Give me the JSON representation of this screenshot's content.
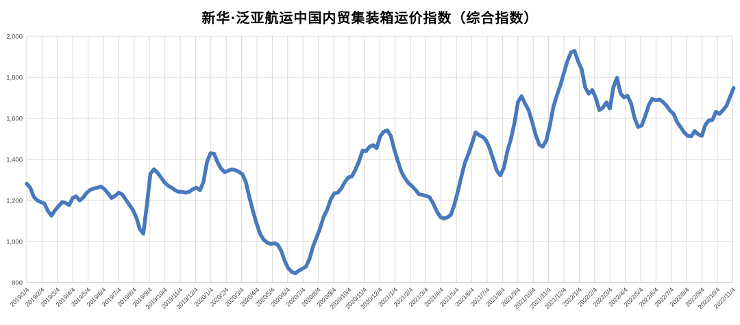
{
  "chart_data": {
    "type": "line",
    "title": "新华·泛亚航运中国内贸集装箱运价指数（综合指数）",
    "legend": "none",
    "grid": true,
    "ylim": [
      800,
      2000
    ],
    "y_tick_step": 200,
    "y_tick_labels": [
      "800",
      "1,000",
      "1,200",
      "1,400",
      "1,600",
      "1,800",
      "2,000"
    ],
    "x_tick_labels": [
      "2019/1/4",
      "2019/2/4",
      "2019/3/4",
      "2019/4/4",
      "2019/5/4",
      "2019/6/4",
      "2019/7/4",
      "2019/8/4",
      "2019/9/4",
      "2019/10/4",
      "2019/11/4",
      "2019/12/4",
      "2020/1/4",
      "2020/2/4",
      "2020/3/4",
      "2020/4/4",
      "2020/5/4",
      "2020/6/4",
      "2020/7/4",
      "2020/8/4",
      "2020/9/4",
      "2020/10/4",
      "2020/11/4",
      "2020/12/4",
      "2021/1/4",
      "2021/2/4",
      "2021/3/4",
      "2021/4/4",
      "2021/5/4",
      "2021/6/4",
      "2021/7/4",
      "2021/8/4",
      "2021/9/4",
      "2021/10/4",
      "2021/11/4",
      "2021/12/4",
      "2022/1/4",
      "2022/2/4",
      "2022/3/4",
      "2022/4/4",
      "2022/5/4",
      "2022/6/4",
      "2022/7/4",
      "2022/8/4",
      "2022/9/4",
      "2022/10/4",
      "2022/11/4"
    ],
    "colors": {
      "line": "#4879BD",
      "grid": "#D9D9D9",
      "axis": "#BFBFBF",
      "tick_text": "#404040",
      "title_text": "#000000"
    },
    "series": [
      {
        "name": "综合指数",
        "frequency": "weekly",
        "values": [
          1282,
          1262,
          1218,
          1200,
          1192,
          1185,
          1148,
          1126,
          1152,
          1172,
          1192,
          1188,
          1178,
          1212,
          1220,
          1200,
          1215,
          1238,
          1252,
          1258,
          1262,
          1268,
          1255,
          1235,
          1212,
          1222,
          1238,
          1230,
          1205,
          1180,
          1155,
          1118,
          1060,
          1038,
          1180,
          1330,
          1352,
          1335,
          1312,
          1288,
          1272,
          1262,
          1250,
          1242,
          1242,
          1238,
          1242,
          1255,
          1262,
          1250,
          1290,
          1388,
          1430,
          1428,
          1385,
          1355,
          1338,
          1345,
          1352,
          1348,
          1340,
          1328,
          1290,
          1215,
          1150,
          1090,
          1038,
          1010,
          995,
          988,
          992,
          985,
          955,
          905,
          870,
          852,
          845,
          858,
          868,
          878,
          915,
          975,
          1020,
          1065,
          1120,
          1155,
          1205,
          1235,
          1238,
          1258,
          1290,
          1312,
          1318,
          1350,
          1390,
          1443,
          1440,
          1462,
          1470,
          1455,
          1512,
          1535,
          1542,
          1515,
          1448,
          1392,
          1340,
          1308,
          1285,
          1270,
          1252,
          1230,
          1227,
          1222,
          1215,
          1185,
          1148,
          1120,
          1112,
          1118,
          1130,
          1180,
          1245,
          1318,
          1385,
          1428,
          1480,
          1532,
          1518,
          1510,
          1492,
          1452,
          1400,
          1345,
          1322,
          1360,
          1440,
          1500,
          1578,
          1680,
          1708,
          1672,
          1640,
          1582,
          1520,
          1472,
          1462,
          1492,
          1565,
          1655,
          1712,
          1762,
          1822,
          1880,
          1922,
          1928,
          1878,
          1840,
          1752,
          1720,
          1738,
          1700,
          1640,
          1652,
          1678,
          1648,
          1752,
          1798,
          1722,
          1702,
          1710,
          1672,
          1600,
          1558,
          1565,
          1612,
          1665,
          1695,
          1688,
          1692,
          1680,
          1662,
          1638,
          1622,
          1582,
          1558,
          1532,
          1515,
          1512,
          1538,
          1522,
          1515,
          1568,
          1590,
          1592,
          1632,
          1622,
          1640,
          1662,
          1705,
          1748
        ]
      }
    ]
  }
}
